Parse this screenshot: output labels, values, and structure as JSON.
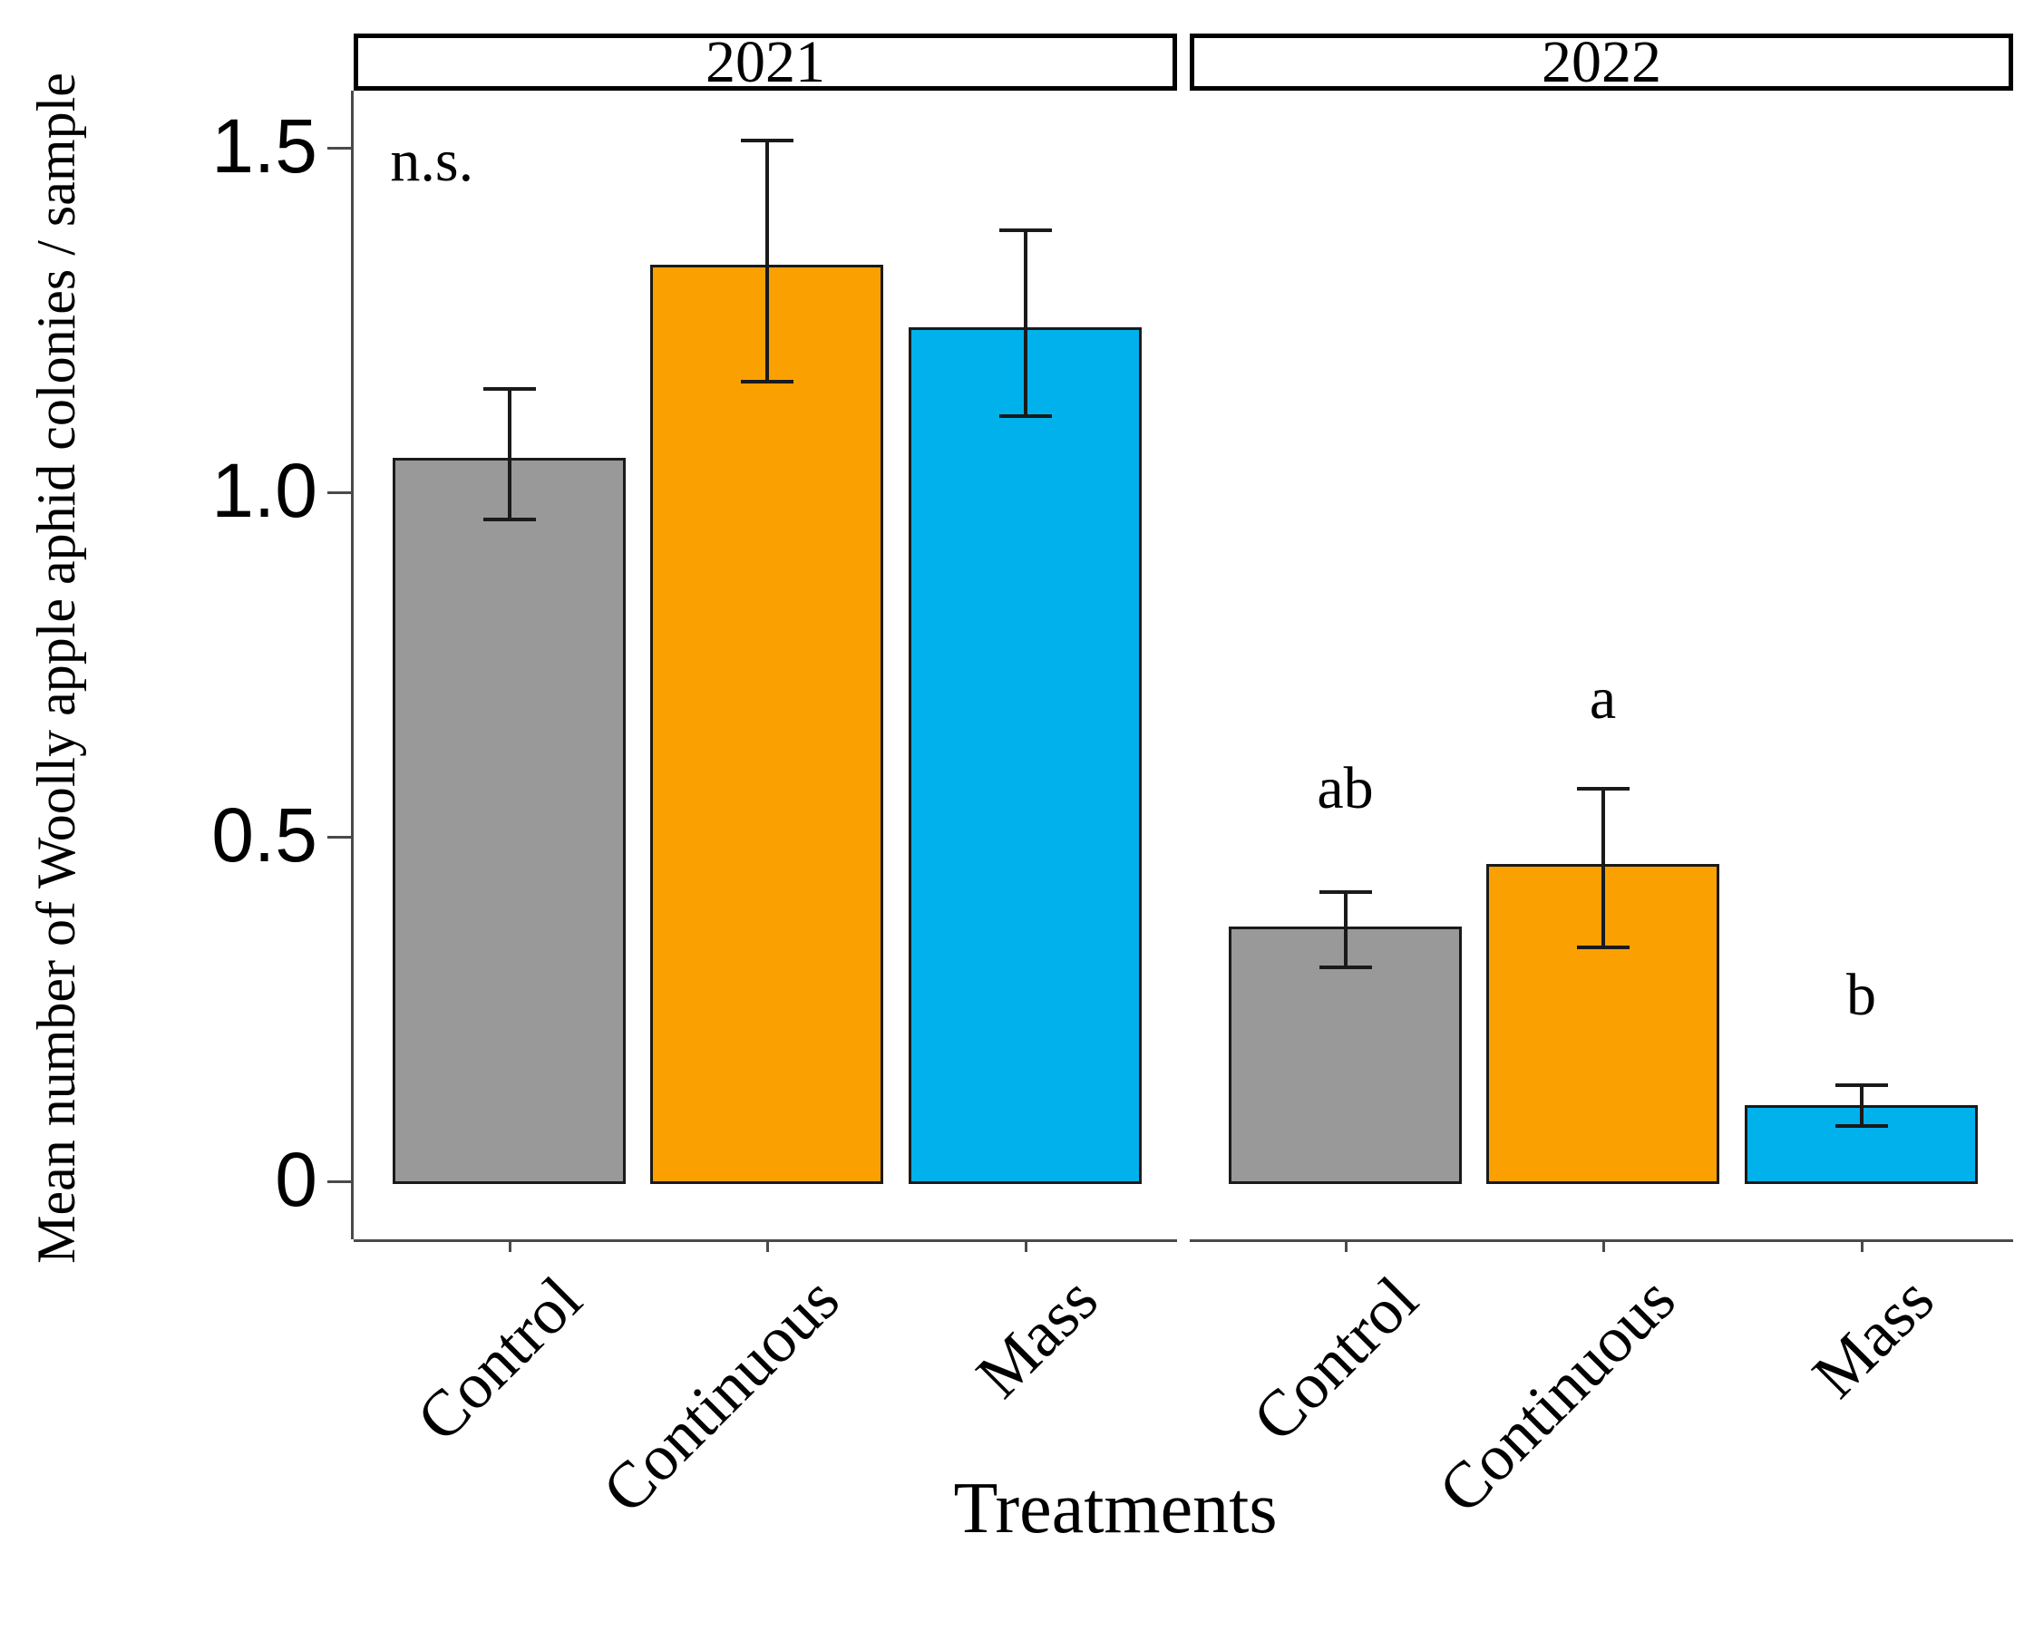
{
  "chart_data": {
    "type": "bar",
    "title": "",
    "ylabel": "Mean number of Woolly apple aphid colonies / sample",
    "xlabel": "Treatments",
    "ylim": [
      0,
      1.55
    ],
    "yticks": [
      0,
      0.5,
      1.0,
      1.5
    ],
    "ytick_labels": [
      "0",
      "0.5",
      "1.0",
      "1.5"
    ],
    "categories": [
      "Control",
      "Continuous",
      "Mass"
    ],
    "bar_colors": [
      "#999999",
      "#FAA000",
      "#00B1EB"
    ],
    "grid": "off",
    "legend": "none",
    "facets": [
      {
        "label": "2021",
        "series_values": [
          1.05,
          1.33,
          1.24
        ],
        "err_low": [
          0.96,
          1.16,
          1.11
        ],
        "err_high": [
          1.15,
          1.51,
          1.38
        ],
        "annotation": {
          "text": "n.s.",
          "x_frac": 0.095,
          "y": 1.48
        },
        "sig_letters": [
          null,
          null,
          null
        ]
      },
      {
        "label": "2022",
        "series_values": [
          0.37,
          0.46,
          0.11
        ],
        "err_low": [
          0.31,
          0.34,
          0.08
        ],
        "err_high": [
          0.42,
          0.57,
          0.14
        ],
        "annotation": null,
        "sig_letters": [
          {
            "text": "ab",
            "y": 0.57
          },
          {
            "text": "a",
            "y": 0.7
          },
          {
            "text": "b",
            "y": 0.27
          }
        ]
      }
    ]
  }
}
